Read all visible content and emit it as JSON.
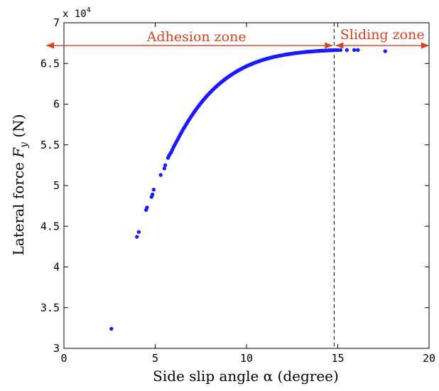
{
  "chart_data": {
    "type": "scatter",
    "title": "",
    "xlabel": "Side slip angle α (degree)",
    "ylabel_prefix": "Lateral force ",
    "ylabel_symbol": "F",
    "ylabel_subscript": "y",
    "ylabel_suffix": " (N)",
    "y_exponent_prefix": "x 10",
    "y_exponent_power": "4",
    "xlim": [
      0,
      20
    ],
    "ylim": [
      30000,
      70000
    ],
    "x_ticks": [
      0,
      5,
      10,
      15,
      20
    ],
    "x_tick_labels": [
      "0",
      "5",
      "10",
      "15",
      "20"
    ],
    "y_ticks": [
      30000,
      35000,
      40000,
      45000,
      50000,
      55000,
      60000,
      65000,
      70000
    ],
    "y_tick_labels": [
      "3",
      "3.5",
      "4",
      "4.5",
      "5",
      "5.5",
      "6",
      "6.5",
      "7"
    ],
    "grid": false,
    "marker_color": "#1a1aff",
    "annotation_color": "#d9411e",
    "threshold_x": 14.8,
    "annotations": {
      "adhesion": {
        "label": "Adhesion zone",
        "x_start": 0,
        "x_end": 14.8,
        "y": 67200
      },
      "sliding": {
        "label": "Sliding zone",
        "x_start": 14.8,
        "x_end": 20,
        "y": 67200
      }
    },
    "series": [
      {
        "values": [
          [
            2.6,
            32400
          ],
          [
            4.0,
            43700
          ],
          [
            4.1,
            44300
          ],
          [
            4.5,
            47000
          ],
          [
            4.55,
            47300
          ],
          [
            4.8,
            48600
          ],
          [
            4.85,
            48900
          ],
          [
            4.92,
            49500
          ],
          [
            5.3,
            51300
          ],
          [
            5.5,
            52100
          ],
          [
            5.55,
            52500
          ],
          [
            5.7,
            53400
          ],
          [
            5.75,
            53650
          ],
          [
            5.82,
            53900
          ],
          [
            5.88,
            54100
          ],
          [
            5.94,
            54400
          ],
          [
            6.0,
            54700
          ],
          [
            6.06,
            54950
          ],
          [
            6.12,
            55200
          ],
          [
            6.18,
            55450
          ],
          [
            6.24,
            55700
          ],
          [
            6.3,
            55950
          ],
          [
            6.36,
            56200
          ],
          [
            6.42,
            56450
          ],
          [
            6.48,
            56700
          ],
          [
            6.54,
            56950
          ],
          [
            6.6,
            57150
          ],
          [
            6.66,
            57380
          ],
          [
            6.72,
            57600
          ],
          [
            6.78,
            57820
          ],
          [
            6.84,
            58040
          ],
          [
            6.9,
            58250
          ],
          [
            6.96,
            58450
          ],
          [
            7.02,
            58650
          ],
          [
            7.08,
            58850
          ],
          [
            7.14,
            59040
          ],
          [
            7.2,
            59230
          ],
          [
            7.26,
            59420
          ],
          [
            7.32,
            59600
          ],
          [
            7.38,
            59780
          ],
          [
            7.44,
            59950
          ],
          [
            7.5,
            60120
          ],
          [
            7.56,
            60290
          ],
          [
            7.62,
            60450
          ],
          [
            7.68,
            60610
          ],
          [
            7.74,
            60770
          ],
          [
            7.8,
            60920
          ],
          [
            7.86,
            61070
          ],
          [
            7.92,
            61220
          ],
          [
            7.98,
            61360
          ],
          [
            8.04,
            61500
          ],
          [
            8.1,
            61640
          ],
          [
            8.16,
            61770
          ],
          [
            8.22,
            61900
          ],
          [
            8.28,
            62030
          ],
          [
            8.34,
            62150
          ],
          [
            8.4,
            62270
          ],
          [
            8.46,
            62390
          ],
          [
            8.52,
            62510
          ],
          [
            8.58,
            62620
          ],
          [
            8.64,
            62730
          ],
          [
            8.7,
            62840
          ],
          [
            8.76,
            62950
          ],
          [
            8.82,
            63050
          ],
          [
            8.88,
            63150
          ],
          [
            8.94,
            63250
          ],
          [
            9.0,
            63350
          ],
          [
            9.06,
            63440
          ],
          [
            9.12,
            63530
          ],
          [
            9.18,
            63620
          ],
          [
            9.24,
            63710
          ],
          [
            9.3,
            63800
          ],
          [
            9.36,
            63880
          ],
          [
            9.42,
            63960
          ],
          [
            9.48,
            64040
          ],
          [
            9.54,
            64120
          ],
          [
            9.6,
            64200
          ],
          [
            9.66,
            64270
          ],
          [
            9.72,
            64340
          ],
          [
            9.78,
            64410
          ],
          [
            9.84,
            64480
          ],
          [
            9.9,
            64550
          ],
          [
            9.96,
            64610
          ],
          [
            10.02,
            64680
          ],
          [
            10.08,
            64740
          ],
          [
            10.14,
            64800
          ],
          [
            10.2,
            64860
          ],
          [
            10.26,
            64910
          ],
          [
            10.32,
            64970
          ],
          [
            10.38,
            65020
          ],
          [
            10.44,
            65080
          ],
          [
            10.5,
            65130
          ],
          [
            10.56,
            65180
          ],
          [
            10.62,
            65230
          ],
          [
            10.68,
            65270
          ],
          [
            10.74,
            65320
          ],
          [
            10.8,
            65360
          ],
          [
            10.86,
            65400
          ],
          [
            10.92,
            65450
          ],
          [
            10.98,
            65490
          ],
          [
            11.04,
            65530
          ],
          [
            11.1,
            65570
          ],
          [
            11.16,
            65600
          ],
          [
            11.22,
            65640
          ],
          [
            11.28,
            65680
          ],
          [
            11.34,
            65710
          ],
          [
            11.4,
            65740
          ],
          [
            11.46,
            65780
          ],
          [
            11.52,
            65810
          ],
          [
            11.58,
            65840
          ],
          [
            11.64,
            65870
          ],
          [
            11.7,
            65900
          ],
          [
            11.76,
            65920
          ],
          [
            11.82,
            65950
          ],
          [
            11.88,
            65980
          ],
          [
            11.94,
            66000
          ],
          [
            12.0,
            66030
          ],
          [
            12.06,
            66050
          ],
          [
            12.12,
            66080
          ],
          [
            12.18,
            66100
          ],
          [
            12.24,
            66120
          ],
          [
            12.3,
            66140
          ],
          [
            12.36,
            66160
          ],
          [
            12.42,
            66180
          ],
          [
            12.48,
            66200
          ],
          [
            12.54,
            66220
          ],
          [
            12.6,
            66240
          ],
          [
            12.66,
            66260
          ],
          [
            12.72,
            66280
          ],
          [
            12.78,
            66290
          ],
          [
            12.84,
            66310
          ],
          [
            12.9,
            66330
          ],
          [
            12.96,
            66340
          ],
          [
            13.02,
            66360
          ],
          [
            13.08,
            66370
          ],
          [
            13.14,
            66390
          ],
          [
            13.2,
            66400
          ],
          [
            13.26,
            66410
          ],
          [
            13.32,
            66430
          ],
          [
            13.38,
            66440
          ],
          [
            13.44,
            66450
          ],
          [
            13.5,
            66460
          ],
          [
            13.56,
            66470
          ],
          [
            13.62,
            66480
          ],
          [
            13.68,
            66490
          ],
          [
            13.74,
            66500
          ],
          [
            13.8,
            66510
          ],
          [
            13.86,
            66520
          ],
          [
            13.92,
            66530
          ],
          [
            13.98,
            66540
          ],
          [
            14.04,
            66550
          ],
          [
            14.1,
            66560
          ],
          [
            14.16,
            66560
          ],
          [
            14.22,
            66570
          ],
          [
            14.28,
            66580
          ],
          [
            14.34,
            66590
          ],
          [
            14.4,
            66590
          ],
          [
            14.46,
            66600
          ],
          [
            14.52,
            66610
          ],
          [
            14.58,
            66610
          ],
          [
            14.64,
            66620
          ],
          [
            14.7,
            66620
          ],
          [
            14.78,
            66630
          ],
          [
            14.88,
            66640
          ],
          [
            15.0,
            66640
          ],
          [
            15.15,
            66650
          ],
          [
            15.5,
            66650
          ],
          [
            15.9,
            66650
          ],
          [
            16.1,
            66650
          ],
          [
            17.6,
            66500
          ]
        ]
      }
    ]
  }
}
